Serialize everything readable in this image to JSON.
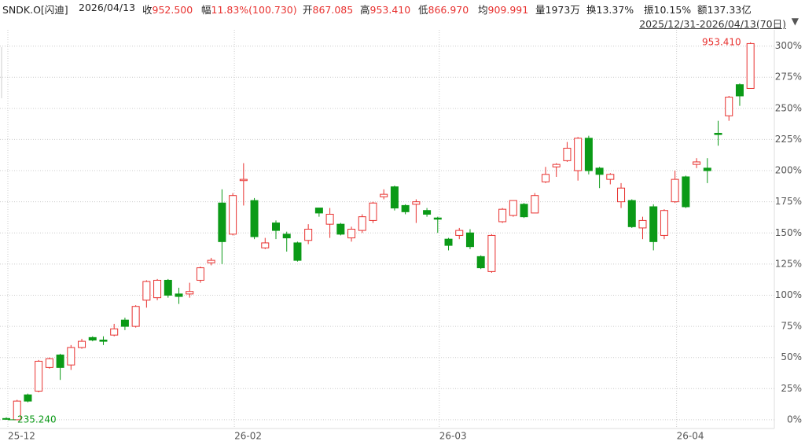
{
  "info": {
    "symbol": "SNDK.O[闪迪]",
    "date": "2026/04/13",
    "items": [
      {
        "label": "收",
        "value": "952.500",
        "color": "red"
      },
      {
        "label": "幅",
        "value": "11.83%(100.730)",
        "color": "red"
      },
      {
        "label": "开",
        "value": "867.085",
        "color": "red"
      },
      {
        "label": "高",
        "value": "953.410",
        "color": "red"
      },
      {
        "label": "低",
        "value": "866.970",
        "color": "red"
      },
      {
        "label": "均",
        "value": "909.991",
        "color": "red"
      },
      {
        "label": "量",
        "value": "1973万",
        "color": "black"
      },
      {
        "label": "换",
        "value": "13.37%",
        "color": "black"
      },
      {
        "label": "振",
        "value": "10.15%",
        "color": "black"
      },
      {
        "label": "额",
        "value": "137.33亿",
        "color": "black"
      }
    ],
    "range": "2025/12/31-2026/04/13(70日)"
  },
  "chart_data": {
    "type": "candlestick",
    "categories": [
      "25-12",
      null,
      null,
      null,
      null,
      null,
      null,
      null,
      null,
      null,
      null,
      null,
      null,
      null,
      null,
      null,
      null,
      null,
      null,
      null,
      null,
      "26-02",
      null,
      null,
      null,
      null,
      null,
      null,
      null,
      null,
      null,
      null,
      null,
      null,
      null,
      null,
      null,
      null,
      null,
      null,
      "26-03",
      null,
      null,
      null,
      null,
      null,
      null,
      null,
      null,
      null,
      null,
      null,
      null,
      null,
      null,
      null,
      null,
      null,
      null,
      null,
      null,
      null,
      "26-04",
      null,
      null,
      null,
      null,
      null,
      null,
      null
    ],
    "open": [
      1,
      0,
      20,
      23,
      42,
      52,
      44,
      58,
      66,
      64,
      68,
      80,
      75,
      96,
      98,
      112,
      101,
      101,
      112,
      126,
      174,
      149,
      192,
      176,
      138,
      158,
      149,
      142,
      144,
      170,
      157,
      157,
      146,
      152,
      160,
      179,
      187,
      172,
      173,
      168,
      162,
      145,
      148,
      150,
      131,
      119,
      159,
      164,
      173,
      166,
      191,
      203,
      208,
      200,
      226,
      202,
      193,
      175,
      176,
      154,
      171,
      148,
      175,
      195,
      205,
      202,
      230,
      244,
      269,
      266
    ],
    "high": [
      2,
      16,
      21,
      48,
      50,
      53,
      60,
      65,
      67,
      67,
      77,
      82,
      92,
      112,
      113,
      113,
      106,
      110,
      123,
      130,
      185,
      182,
      206,
      178,
      146,
      160,
      151,
      143,
      157,
      170,
      170,
      158,
      155,
      165,
      175,
      185,
      188,
      173,
      177,
      170,
      163,
      146,
      154,
      153,
      132,
      149,
      170,
      176,
      174,
      182,
      203,
      206,
      223,
      227,
      228,
      203,
      198,
      190,
      177,
      163,
      173,
      169,
      200,
      196,
      210,
      210,
      240,
      260,
      270,
      303
    ],
    "low": [
      0,
      0,
      14,
      22,
      41,
      32,
      40,
      57,
      63,
      60,
      67,
      72,
      74,
      90,
      96,
      98,
      93,
      98,
      110,
      124,
      125,
      148,
      172,
      145,
      137,
      145,
      135,
      127,
      141,
      163,
      146,
      148,
      143,
      150,
      158,
      177,
      168,
      165,
      158,
      163,
      150,
      136,
      145,
      137,
      121,
      118,
      158,
      163,
      162,
      166,
      190,
      195,
      207,
      192,
      197,
      186,
      189,
      170,
      154,
      145,
      136,
      145,
      174,
      170,
      202,
      190,
      220,
      240,
      252,
      266
    ],
    "close": [
      0.5,
      15,
      15,
      47,
      49,
      42,
      58,
      63,
      64,
      63,
      73,
      75,
      91,
      111,
      112,
      100,
      99,
      103,
      122,
      128,
      143,
      180,
      193,
      147,
      142,
      152,
      146,
      128,
      153,
      166,
      165,
      149,
      153,
      163,
      174,
      181,
      170,
      167,
      175,
      165,
      161,
      140,
      152,
      139,
      122,
      148,
      169,
      176,
      163,
      180,
      197,
      205,
      218,
      226,
      200,
      197,
      197,
      186,
      155,
      160,
      143,
      168,
      193,
      171,
      207,
      200,
      229,
      259,
      260,
      302
    ],
    "up_color": "#e8312f",
    "down_color": "#0b9a17",
    "ylim": [
      -7,
      313
    ],
    "yticks": [
      {
        "value": 0,
        "label": "0%"
      },
      {
        "value": 25,
        "label": "25%"
      },
      {
        "value": 50,
        "label": "50%"
      },
      {
        "value": 75,
        "label": "75%"
      },
      {
        "value": 100,
        "label": "100%"
      },
      {
        "value": 125,
        "label": "125%"
      },
      {
        "value": 150,
        "label": "150%"
      },
      {
        "value": 175,
        "label": "175%"
      },
      {
        "value": 200,
        "label": "200%"
      },
      {
        "value": 225,
        "label": "225%"
      },
      {
        "value": 250,
        "label": "250%"
      },
      {
        "value": 275,
        "label": "275%"
      },
      {
        "value": 300,
        "label": "300%"
      }
    ],
    "grid": true,
    "annotations": [
      {
        "text": "953.410",
        "at": "high",
        "index": 69
      },
      {
        "text": "235.240",
        "at": "low",
        "index": 0
      }
    ]
  }
}
